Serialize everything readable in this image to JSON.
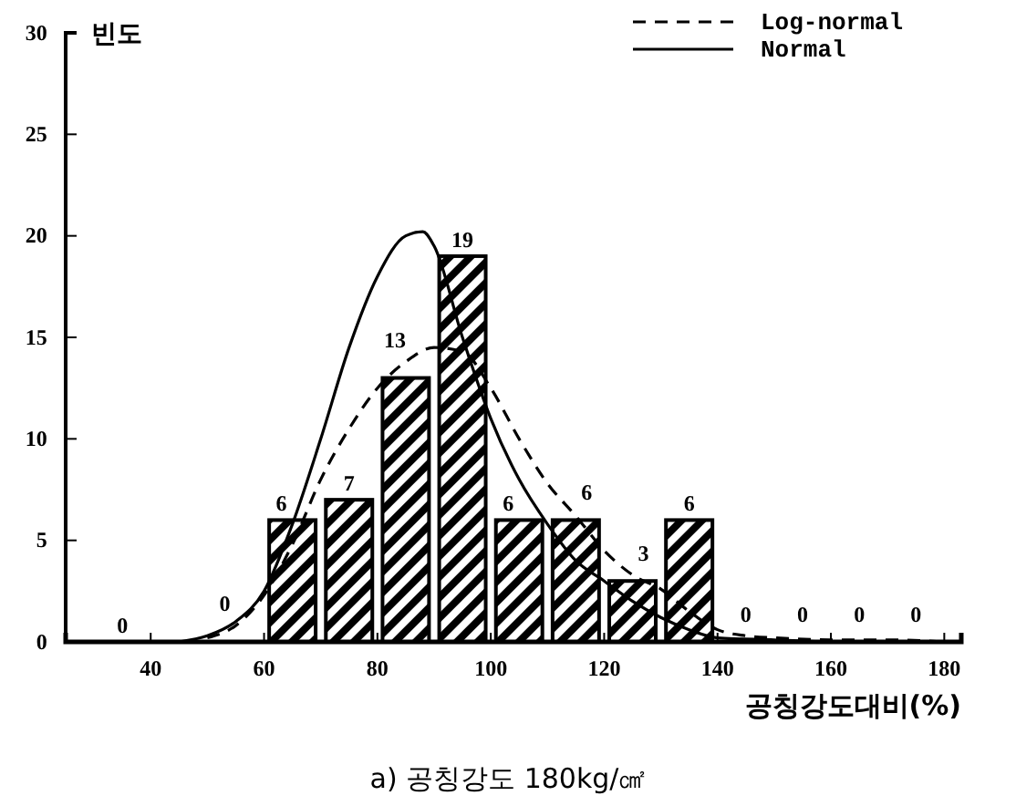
{
  "chart_data": {
    "type": "histogram",
    "title": "a) 공칭강도 180kg/㎠",
    "xlabel": "공칭강도대비(%)",
    "ylabel": "빈도",
    "bins": [
      30,
      40,
      50,
      60,
      70,
      80,
      90,
      100,
      110,
      120,
      130,
      140,
      150,
      160,
      170,
      180
    ],
    "values": [
      0,
      0,
      0,
      6,
      7,
      13,
      19,
      6,
      6,
      3,
      6,
      0,
      0,
      0,
      0
    ],
    "value_labels": [
      "0",
      null,
      "0",
      "6",
      "7",
      "13",
      "19",
      "6",
      "6",
      "3",
      "6",
      "0",
      "0",
      "0",
      "0"
    ],
    "color": "#000000",
    "series": [
      {
        "type": "line",
        "name": "Log-normal",
        "line_style": "dashed",
        "color": "#000000",
        "x": [
          50,
          55,
          60,
          65,
          70,
          75,
          80,
          85,
          90,
          95,
          100,
          105,
          110,
          115,
          120,
          125,
          130,
          135,
          140,
          145,
          150,
          160,
          170,
          180
        ],
        "values": [
          0.2,
          0.8,
          2.3,
          4.8,
          8,
          10.5,
          12.5,
          13.8,
          14.5,
          14.3,
          12.5,
          10,
          7.8,
          6.2,
          4.5,
          3.3,
          2.6,
          1.5,
          0.6,
          0.3,
          0.2,
          0.1,
          0.1,
          0
        ]
      },
      {
        "type": "line",
        "name": "Normal",
        "line_style": "solid",
        "color": "#000000",
        "x": [
          45,
          50,
          55,
          60,
          65,
          70,
          75,
          80,
          85,
          88,
          90,
          95,
          100,
          105,
          110,
          115,
          120,
          125,
          130,
          135,
          140,
          150,
          160,
          170,
          180
        ],
        "values": [
          0,
          0.3,
          1,
          2.5,
          5.8,
          10,
          14.5,
          18,
          20,
          20.2,
          19.5,
          15,
          11,
          8,
          5.8,
          4,
          3,
          2,
          1.2,
          0.6,
          0.2,
          0.1,
          0,
          0,
          0
        ]
      }
    ],
    "xlim": [
      25,
      183
    ],
    "xticks": [
      40,
      60,
      80,
      100,
      120,
      140,
      160,
      180
    ],
    "ylim": [
      0,
      30
    ],
    "yticks": [
      0,
      5,
      10,
      15,
      20,
      25,
      30
    ],
    "grid": false,
    "legend": "top right",
    "marker": "none"
  }
}
